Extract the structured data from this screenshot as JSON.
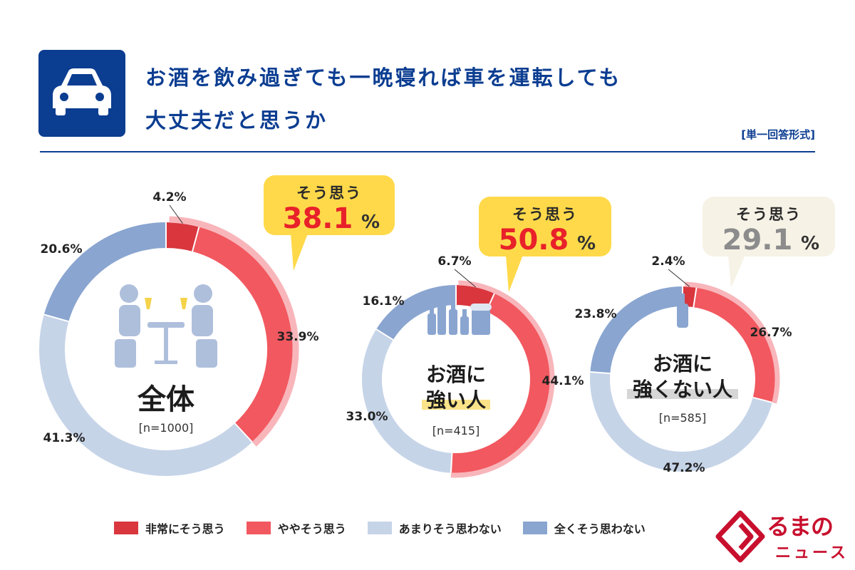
{
  "header": {
    "icon": "car-icon",
    "title_line1": "お酒を飲み過ぎても一晩寝れば車を運転しても",
    "title_line2": "大丈夫だと思うか",
    "answer_format": "[単一回答形式]"
  },
  "colors": {
    "very_agree": "#d9363e",
    "somewhat_agree": "#f2585f",
    "not_really": "#c6d4e8",
    "not_at_all": "#8aa5d0",
    "agree_band": "#f8b6bb",
    "callout_yellow": "#ffd94a",
    "callout_cream": "#f6f2e6",
    "highlight_red": "#e8212a",
    "highlight_gray": "#8c8c8c",
    "brand_blue": "#0b3d91"
  },
  "chart_data": {
    "type": "pie",
    "variant": "donut",
    "categories": [
      "非常にそう思う",
      "ややそう思う",
      "あまりそう思わない",
      "全くそう思わない"
    ],
    "legend": [
      {
        "label": "非常にそう思う",
        "color": "#d9363e"
      },
      {
        "label": "ややそう思う",
        "color": "#f2585f"
      },
      {
        "label": "あまりそう思わない",
        "color": "#c6d4e8"
      },
      {
        "label": "全くそう思わない",
        "color": "#8aa5d0"
      }
    ],
    "charts": [
      {
        "name": "全体",
        "n_label": "[n=1000]",
        "values": [
          4.2,
          33.9,
          41.3,
          20.6
        ],
        "labels": [
          "4.2%",
          "33.9%",
          "41.3%",
          "20.6%"
        ],
        "callout": {
          "head": "そう思う",
          "value": "38.1",
          "unit": "%",
          "style": "yellow"
        }
      },
      {
        "name_line1": "お酒に",
        "name_line2": "強い人",
        "n_label": "[n=415]",
        "values": [
          6.7,
          44.1,
          33.0,
          16.1
        ],
        "labels": [
          "6.7%",
          "44.1%",
          "33.0%",
          "16.1%"
        ],
        "callout": {
          "head": "そう思う",
          "value": "50.8",
          "unit": "%",
          "style": "yellow"
        }
      },
      {
        "name_line1": "お酒に",
        "name_line2": "強くない人",
        "n_label": "[n=585]",
        "values": [
          2.4,
          26.7,
          47.2,
          23.8
        ],
        "labels": [
          "2.4%",
          "26.7%",
          "47.2%",
          "23.8%"
        ],
        "callout": {
          "head": "そう思う",
          "value": "29.1",
          "unit": "%",
          "style": "cream"
        }
      }
    ]
  },
  "watermark": {
    "line1": "るまの",
    "line2": "ニュース"
  }
}
